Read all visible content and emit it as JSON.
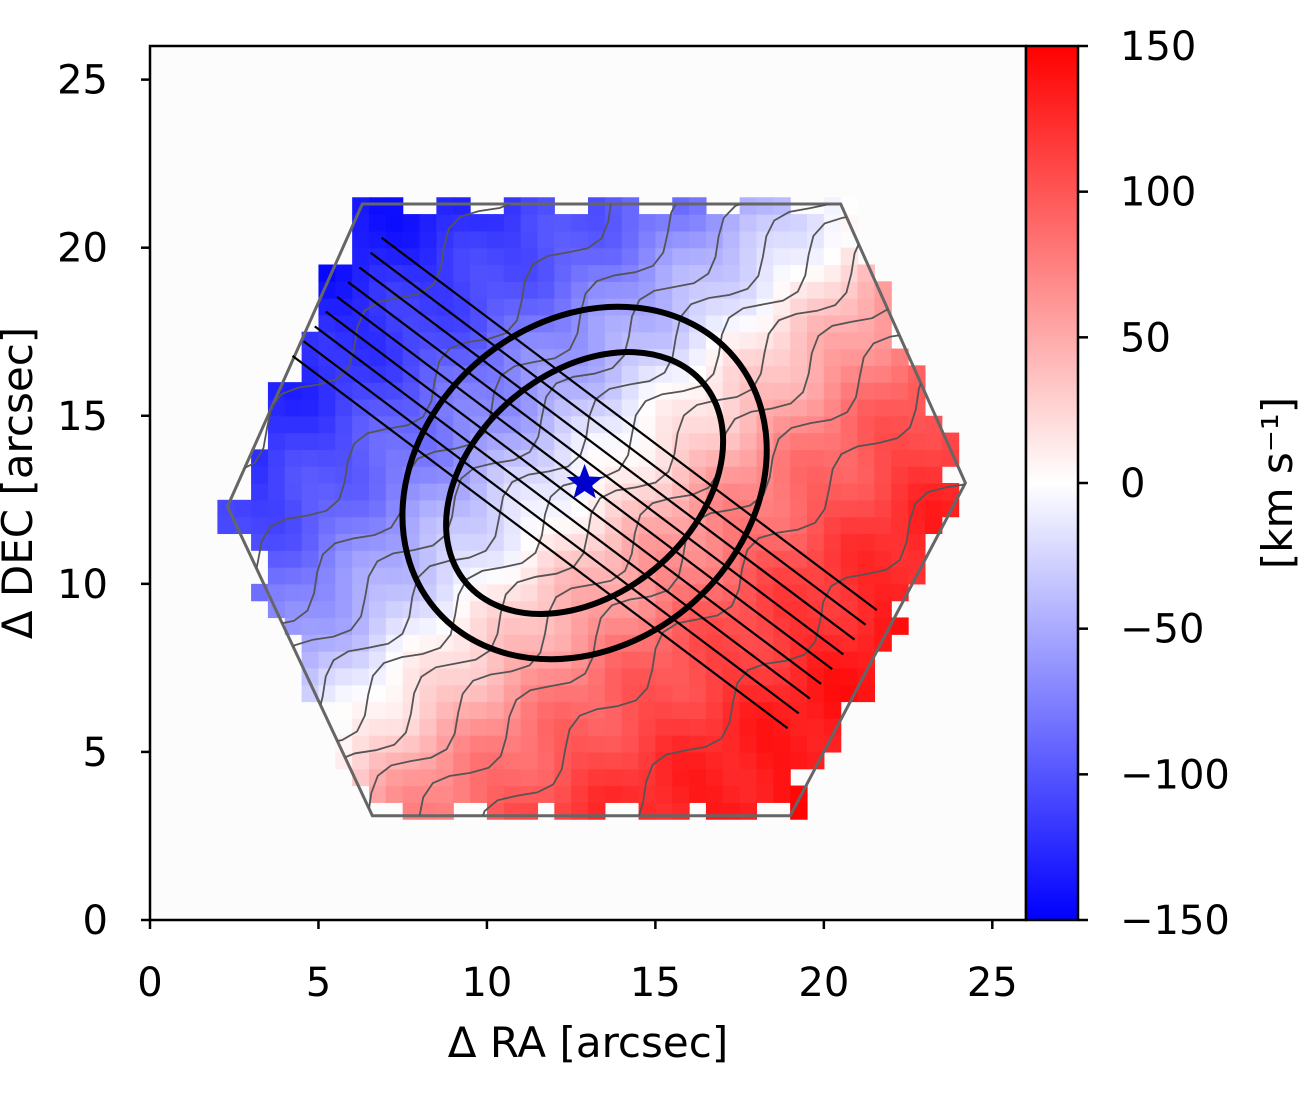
{
  "chart_data": {
    "type": "heatmap",
    "xlabel": "Δ RA  [arcsec]",
    "ylabel": "Δ DEC [arcsec]",
    "xlim": [
      0,
      26
    ],
    "ylim": [
      0,
      26
    ],
    "xticks": [
      0,
      5,
      10,
      15,
      20,
      25
    ],
    "yticks": [
      0,
      5,
      10,
      15,
      20,
      25
    ],
    "colorbar": {
      "label": "[km s⁻¹]",
      "ticks": [
        150,
        100,
        50,
        0,
        -50,
        -100,
        -150
      ],
      "tick_labels": [
        "150",
        "100",
        "50",
        "0",
        "−50",
        "−100",
        "−150"
      ],
      "range": [
        -150,
        150
      ],
      "colormap": "bwr",
      "colors": {
        "low": "#0000ff",
        "mid": "#ffffff",
        "high": "#ff0000"
      }
    },
    "map": {
      "center": [
        12.9,
        13.0
      ],
      "kinematic_pa_deg": 135,
      "vmax_kms": 150,
      "hexagon_vertices": [
        [
          2.3,
          12.3
        ],
        [
          6.3,
          21.3
        ],
        [
          20.5,
          21.3
        ],
        [
          24.2,
          13.0
        ],
        [
          19.0,
          3.1
        ],
        [
          6.6,
          3.1
        ]
      ]
    },
    "markers": [
      {
        "type": "star",
        "x": 12.9,
        "y": 13.0,
        "color": "#0000cc"
      }
    ],
    "ellipses": [
      {
        "cx": 12.9,
        "cy": 13.0,
        "semi_major": 5.8,
        "semi_minor": 4.8,
        "angle_deg": 40
      },
      {
        "cx": 12.9,
        "cy": 13.0,
        "semi_major": 4.6,
        "semi_minor": 3.3,
        "angle_deg": 40
      }
    ],
    "slits": {
      "angle_deg": -37,
      "half_length": 9.2,
      "count": 9,
      "spacing": 0.55,
      "center": [
        12.9,
        13.0
      ]
    },
    "contours": {
      "levels_kms": [
        -125,
        -100,
        -75,
        -50,
        -25,
        0,
        25,
        50,
        75,
        100,
        125
      ],
      "color": "#555555"
    }
  }
}
